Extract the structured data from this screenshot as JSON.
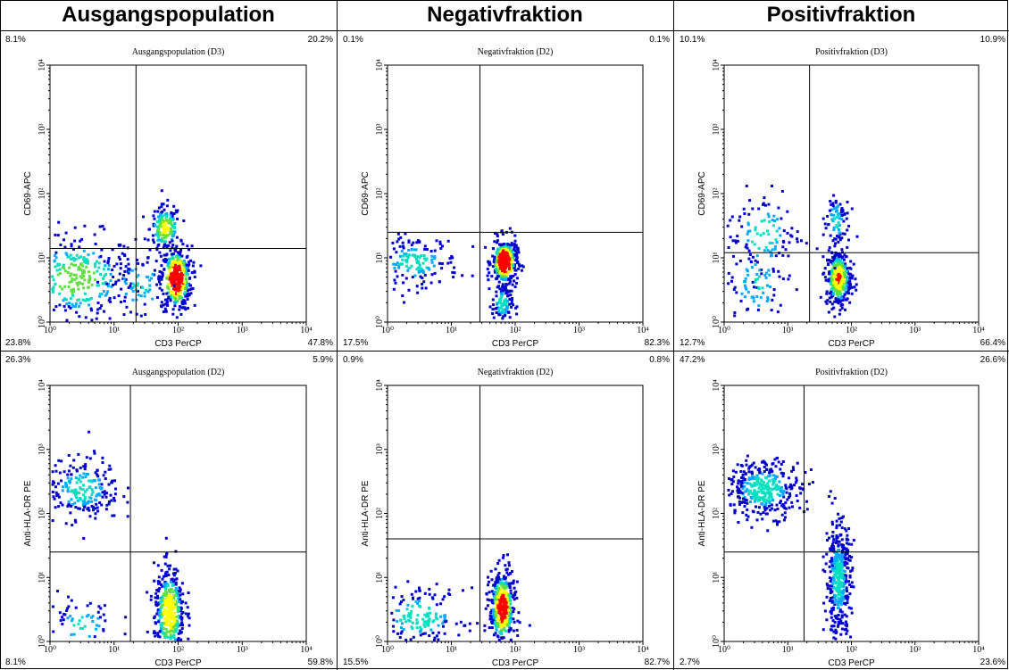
{
  "columns": [
    "Ausgangspopulation",
    "Negativfraktion",
    "Positivfraktion"
  ],
  "x_axis_label": "CD3 PerCP",
  "x_tick_labels": [
    "10⁰",
    "10¹",
    "10²",
    "10³",
    "10⁴"
  ],
  "y_tick_labels": [
    "10⁰",
    "10¹",
    "10²",
    "10³",
    "10⁴"
  ],
  "density_colors": [
    "#0000cc",
    "#00aaff",
    "#00e0c0",
    "#60e040",
    "#ffff00",
    "#ff0000"
  ],
  "chart_data": [
    {
      "type": "scatter",
      "title": "Ausgangspopulation (D3)",
      "xlabel": "CD3 PerCP",
      "ylabel": "CD69-APC",
      "xscale": "log",
      "yscale": "log",
      "xlim": [
        1,
        10000
      ],
      "ylim": [
        1,
        10000
      ],
      "gate": {
        "x": 22,
        "y": 14
      },
      "quadrant_pct": {
        "ul": "8.1%",
        "ur": "20.2%",
        "ll": "23.8%",
        "lr": "47.8%"
      },
      "clusters": [
        {
          "x": 2.5,
          "y": 5,
          "sx": 0.45,
          "sy": 0.35,
          "n": 320,
          "hot": 0.3
        },
        {
          "x": 60,
          "y": 30,
          "sx": 0.12,
          "sy": 0.18,
          "n": 160,
          "hot": 0.45
        },
        {
          "x": 90,
          "y": 5,
          "sx": 0.12,
          "sy": 0.25,
          "n": 380,
          "hot": 0.9
        },
        {
          "x": 25,
          "y": 4,
          "sx": 0.3,
          "sy": 0.3,
          "n": 90,
          "hot": 0.1
        }
      ]
    },
    {
      "type": "scatter",
      "title": "Negativfraktion (D2)",
      "xlabel": "CD3 PerCP",
      "ylabel": "CD69-APC",
      "xscale": "log",
      "yscale": "log",
      "xlim": [
        1,
        10000
      ],
      "ylim": [
        1,
        10000
      ],
      "gate": {
        "x": 28,
        "y": 25
      },
      "quadrant_pct": {
        "ul": "0.1%",
        "ur": "0.1%",
        "ll": "17.5%",
        "lr": "82.3%"
      },
      "clusters": [
        {
          "x": 2.5,
          "y": 9,
          "sx": 0.35,
          "sy": 0.2,
          "n": 170,
          "hot": 0.15
        },
        {
          "x": 65,
          "y": 9,
          "sx": 0.1,
          "sy": 0.18,
          "n": 380,
          "hot": 1.0
        },
        {
          "x": 60,
          "y": 2,
          "sx": 0.08,
          "sy": 0.15,
          "n": 100,
          "hot": 0.2
        }
      ]
    },
    {
      "type": "scatter",
      "title": "Positivfraktion (D3)",
      "xlabel": "CD3 PerCP",
      "ylabel": "CD69-APC",
      "xscale": "log",
      "yscale": "log",
      "xlim": [
        1,
        10000
      ],
      "ylim": [
        1,
        10000
      ],
      "gate": {
        "x": 22,
        "y": 12
      },
      "quadrant_pct": {
        "ul": "10.1%",
        "ur": "10.9%",
        "ll": "12.7%",
        "lr": "66.4%"
      },
      "clusters": [
        {
          "x": 4,
          "y": 25,
          "sx": 0.3,
          "sy": 0.35,
          "n": 110,
          "hot": 0.15
        },
        {
          "x": 3,
          "y": 4,
          "sx": 0.3,
          "sy": 0.35,
          "n": 90,
          "hot": 0.1
        },
        {
          "x": 60,
          "y": 5,
          "sx": 0.1,
          "sy": 0.22,
          "n": 360,
          "hot": 0.6
        },
        {
          "x": 55,
          "y": 40,
          "sx": 0.1,
          "sy": 0.25,
          "n": 80,
          "hot": 0.1
        }
      ]
    },
    {
      "type": "scatter",
      "title": "Ausgangspopulation (D2)",
      "xlabel": "CD3 PerCP",
      "ylabel": "Anti-HLA-DR PE",
      "xscale": "log",
      "yscale": "log",
      "xlim": [
        1,
        10000
      ],
      "ylim": [
        1,
        10000
      ],
      "gate": {
        "x": 18,
        "y": 25
      },
      "quadrant_pct": {
        "ul": "26.3%",
        "ur": "5.9%",
        "ll": "8.1%",
        "lr": "59.8%"
      },
      "clusters": [
        {
          "x": 3,
          "y": 250,
          "sx": 0.3,
          "sy": 0.25,
          "n": 230,
          "hot": 0.15
        },
        {
          "x": 70,
          "y": 3,
          "sx": 0.12,
          "sy": 0.35,
          "n": 420,
          "hot": 0.55
        },
        {
          "x": 3,
          "y": 2,
          "sx": 0.3,
          "sy": 0.25,
          "n": 60,
          "hot": 0.1
        }
      ]
    },
    {
      "type": "scatter",
      "title": "Negativfraktion (D2)",
      "xlabel": "CD3 PerCP",
      "ylabel": "Anti-HLA-DR PE",
      "xscale": "log",
      "yscale": "log",
      "xlim": [
        1,
        10000
      ],
      "ylim": [
        1,
        10000
      ],
      "gate": {
        "x": 28,
        "y": 40
      },
      "quadrant_pct": {
        "ul": "0.9%",
        "ur": "0.8%",
        "ll": "15.5%",
        "lr": "82.7%"
      },
      "clusters": [
        {
          "x": 3,
          "y": 2.5,
          "sx": 0.35,
          "sy": 0.22,
          "n": 170,
          "hot": 0.2
        },
        {
          "x": 60,
          "y": 3.5,
          "sx": 0.1,
          "sy": 0.3,
          "n": 440,
          "hot": 0.75
        }
      ]
    },
    {
      "type": "scatter",
      "title": "Positivfraktion (D2)",
      "xlabel": "CD3 PerCP",
      "ylabel": "Anti-HLA-DR PE",
      "xscale": "log",
      "yscale": "log",
      "xlim": [
        1,
        10000
      ],
      "ylim": [
        1,
        10000
      ],
      "gate": {
        "x": 18,
        "y": 25
      },
      "quadrant_pct": {
        "ul": "47.2%",
        "ur": "26.6%",
        "ll": "2.7%",
        "lr": "23.6%"
      },
      "clusters": [
        {
          "x": 4,
          "y": 250,
          "sx": 0.3,
          "sy": 0.22,
          "n": 360,
          "hot": 0.2
        },
        {
          "x": 60,
          "y": 10,
          "sx": 0.1,
          "sy": 0.45,
          "n": 420,
          "hot": 0.15
        }
      ]
    }
  ]
}
